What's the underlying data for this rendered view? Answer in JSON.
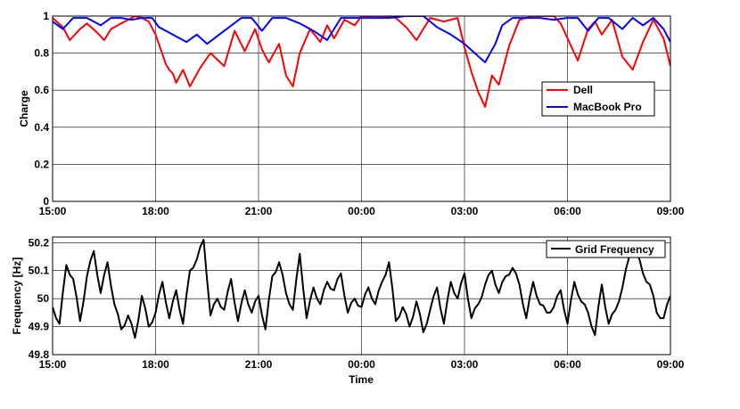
{
  "chart_data": [
    {
      "type": "line",
      "ylabel": "Charge",
      "ylim": [
        0,
        1
      ],
      "yticks": [
        0,
        0.2,
        0.4,
        0.6,
        0.8,
        1
      ],
      "ytick_labels": [
        "0",
        "0.2",
        "0.4",
        "0.6",
        "0.8",
        "1"
      ],
      "xlim": [
        0,
        18
      ],
      "xticks": [
        0,
        3,
        6,
        9,
        12,
        15,
        18
      ],
      "xtick_labels": [
        "15:00",
        "18:00",
        "21:00",
        "00:00",
        "03:00",
        "06:00",
        "09:00"
      ],
      "grid": true,
      "legend": "right",
      "series": [
        {
          "name": "Dell",
          "color": "#ff0000",
          "x": [
            0,
            0.3,
            0.5,
            0.8,
            1.0,
            1.3,
            1.5,
            1.7,
            2.0,
            2.2,
            2.4,
            2.6,
            2.8,
            3.0,
            3.15,
            3.3,
            3.4,
            3.5,
            3.6,
            3.8,
            4.0,
            4.3,
            4.6,
            5.0,
            5.3,
            5.6,
            5.9,
            6.1,
            6.3,
            6.6,
            6.8,
            7.0,
            7.2,
            7.5,
            7.8,
            8.0,
            8.2,
            8.5,
            8.8,
            9.0,
            9.3,
            9.6,
            10.0,
            10.3,
            10.6,
            11.0,
            11.4,
            11.8,
            12.0,
            12.2,
            12.4,
            12.6,
            12.8,
            13.0,
            13.3,
            13.6,
            14.0,
            14.3,
            14.6,
            14.8,
            15.0,
            15.3,
            15.6,
            15.8,
            16.0,
            16.3,
            16.6,
            16.9,
            17.2,
            17.5,
            17.8,
            18.0
          ],
          "y": [
            0.99,
            0.94,
            0.87,
            0.93,
            0.96,
            0.91,
            0.87,
            0.93,
            0.96,
            0.98,
            1.0,
            0.99,
            0.97,
            0.9,
            0.82,
            0.74,
            0.71,
            0.69,
            0.64,
            0.71,
            0.62,
            0.72,
            0.8,
            0.73,
            0.92,
            0.81,
            0.93,
            0.82,
            0.75,
            0.85,
            0.68,
            0.62,
            0.8,
            0.93,
            0.86,
            0.95,
            0.88,
            0.98,
            0.95,
            1.0,
            1.0,
            1.0,
            0.99,
            0.94,
            0.87,
            0.99,
            0.97,
            0.99,
            0.83,
            0.7,
            0.59,
            0.51,
            0.68,
            0.63,
            0.84,
            0.98,
            1.0,
            1.0,
            1.0,
            0.96,
            0.88,
            0.76,
            0.93,
            0.97,
            0.9,
            0.98,
            0.78,
            0.71,
            0.86,
            0.98,
            0.88,
            0.73
          ]
        },
        {
          "name": "MacBook Pro",
          "color": "#0000ff",
          "x": [
            0,
            0.3,
            0.6,
            1.0,
            1.4,
            1.7,
            2.0,
            2.3,
            2.6,
            2.9,
            3.1,
            3.3,
            3.6,
            3.9,
            4.2,
            4.5,
            5.0,
            5.5,
            5.8,
            6.1,
            6.4,
            6.8,
            7.2,
            7.6,
            8.0,
            8.4,
            8.8,
            9.3,
            9.8,
            10.3,
            10.8,
            11.2,
            11.6,
            12.0,
            12.3,
            12.6,
            12.9,
            13.1,
            13.4,
            13.8,
            14.2,
            14.6,
            15.0,
            15.3,
            15.6,
            15.9,
            16.2,
            16.6,
            16.9,
            17.2,
            17.5,
            17.8,
            18.0
          ],
          "y": [
            0.97,
            0.93,
            0.99,
            0.99,
            0.95,
            0.99,
            0.99,
            0.98,
            0.99,
            0.99,
            0.94,
            0.92,
            0.89,
            0.86,
            0.9,
            0.85,
            0.92,
            0.99,
            0.99,
            0.92,
            0.99,
            0.99,
            0.96,
            0.92,
            0.87,
            0.99,
            0.99,
            0.99,
            0.99,
            1.0,
            1.0,
            0.94,
            0.9,
            0.85,
            0.8,
            0.75,
            0.85,
            0.95,
            0.99,
            0.99,
            0.99,
            0.98,
            0.99,
            0.99,
            0.92,
            0.99,
            0.99,
            0.93,
            0.99,
            0.95,
            0.99,
            0.93,
            0.86
          ]
        }
      ]
    },
    {
      "type": "line",
      "xlabel": "Time",
      "ylabel": "Frequency [Hz]",
      "ylim": [
        49.8,
        50.22
      ],
      "yticks": [
        49.8,
        49.9,
        50,
        50.1,
        50.2
      ],
      "ytick_labels": [
        "49.8",
        "49.9",
        "50",
        "50.1",
        "50.2"
      ],
      "xlim": [
        0,
        18
      ],
      "xticks": [
        0,
        3,
        6,
        9,
        12,
        15,
        18
      ],
      "xtick_labels": [
        "15:00",
        "18:00",
        "21:00",
        "00:00",
        "03:00",
        "06:00",
        "09:00"
      ],
      "grid": true,
      "legend": "top-right",
      "series": [
        {
          "name": "Grid Frequency",
          "color": "#000000",
          "x": [
            0,
            0.2,
            0.4,
            0.6,
            0.8,
            1.0,
            1.2,
            1.4,
            1.6,
            1.8,
            2.0,
            2.2,
            2.4,
            2.6,
            2.8,
            3.0,
            3.2,
            3.4,
            3.6,
            3.8,
            4.0,
            4.2,
            4.4,
            4.6,
            4.8,
            5.0,
            5.2,
            5.4,
            5.6,
            5.8,
            6.0,
            6.2,
            6.4,
            6.6,
            6.8,
            7.0,
            7.2,
            7.4,
            7.6,
            7.8,
            8.0,
            8.2,
            8.4,
            8.6,
            8.8,
            9.0,
            9.2,
            9.4,
            9.6,
            9.8,
            10.0,
            10.2,
            10.4,
            10.6,
            10.8,
            11.0,
            11.2,
            11.4,
            11.6,
            11.8,
            12.0,
            12.2,
            12.4,
            12.6,
            12.8,
            13.0,
            13.2,
            13.4,
            13.6,
            13.8,
            14.0,
            14.2,
            14.4,
            14.6,
            14.8,
            15.0,
            15.2,
            15.4,
            15.6,
            15.8,
            16.0,
            16.2,
            16.4,
            16.6,
            16.8,
            17.0,
            17.2,
            17.4,
            17.6,
            17.8,
            18.0
          ],
          "y": [
            49.97,
            49.91,
            50.12,
            50.07,
            49.92,
            50.08,
            50.17,
            50.02,
            50.13,
            49.98,
            49.89,
            49.94,
            49.86,
            50.01,
            49.9,
            49.95,
            50.06,
            49.93,
            50.03,
            49.91,
            50.1,
            50.14,
            50.21,
            49.94,
            50.0,
            49.96,
            50.07,
            49.92,
            50.03,
            49.95,
            50.01,
            49.89,
            50.08,
            50.13,
            50.02,
            49.96,
            50.16,
            49.93,
            50.04,
            49.98,
            50.06,
            50.03,
            50.09,
            49.95,
            50.0,
            49.97,
            50.04,
            49.98,
            50.06,
            50.13,
            49.92,
            49.97,
            49.9,
            49.99,
            49.88,
            49.96,
            50.04,
            49.91,
            50.06,
            50.0,
            50.09,
            49.93,
            49.98,
            50.05,
            50.1,
            50.02,
            50.08,
            50.11,
            50.05,
            49.93,
            50.06,
            49.98,
            49.95,
            49.97,
            50.03,
            49.91,
            50.06,
            49.99,
            49.95,
            49.87,
            50.05,
            49.91,
            49.96,
            50.04,
            50.15,
            50.17,
            50.09,
            50.05,
            49.95,
            49.93,
            50.01
          ]
        }
      ]
    }
  ]
}
